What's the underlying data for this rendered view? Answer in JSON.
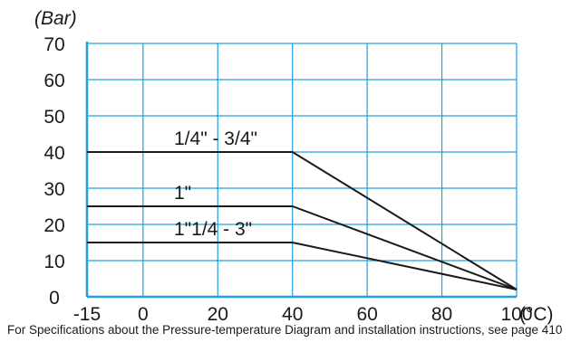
{
  "chart_data": {
    "type": "line",
    "ylabel": "(Bar)",
    "xunit": "(°C)",
    "xlim": [
      -15,
      100
    ],
    "ylim": [
      0,
      70
    ],
    "x_ticks": [
      -15,
      0,
      20,
      40,
      60,
      80,
      100
    ],
    "y_ticks": [
      0,
      10,
      20,
      30,
      40,
      50,
      60,
      70
    ],
    "grid": true,
    "series": [
      {
        "name": "1/4\" - 3/4\"",
        "x": [
          -15,
          40,
          100
        ],
        "y": [
          40,
          40,
          2
        ]
      },
      {
        "name": "1\"",
        "x": [
          -15,
          40,
          100
        ],
        "y": [
          25,
          25,
          2
        ]
      },
      {
        "name": "1\"1/4 - 3\"",
        "x": [
          -15,
          40,
          100
        ],
        "y": [
          15,
          15,
          2
        ]
      }
    ]
  },
  "caption": "For Specifications about the Pressure-temperature Diagram and installation instructions, see page 410",
  "colors": {
    "grid": "#1fa0dc",
    "line": "#1a1a1a"
  }
}
